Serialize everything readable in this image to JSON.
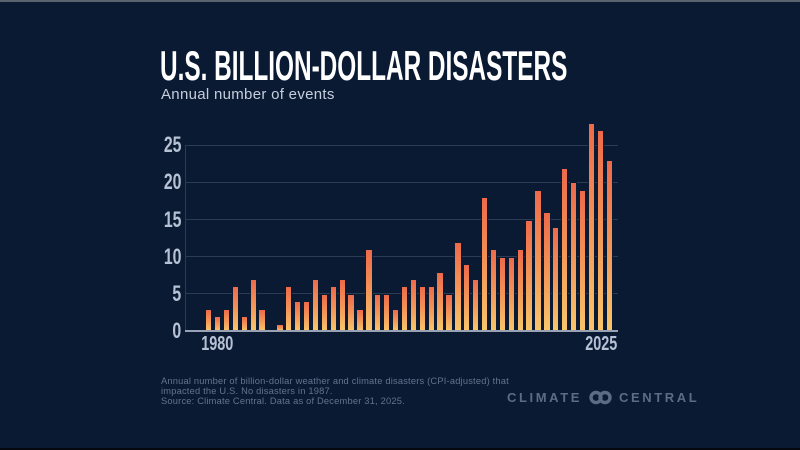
{
  "header": {
    "title": "U.S. BILLION-DOLLAR DISASTERS",
    "subtitle": "Annual number of events"
  },
  "chart_data": {
    "type": "bar",
    "title": "U.S. BILLION-DOLLAR DISASTERS",
    "subtitle": "Annual number of events",
    "x": [
      1980,
      1981,
      1982,
      1983,
      1984,
      1985,
      1986,
      1987,
      1988,
      1989,
      1990,
      1991,
      1992,
      1993,
      1994,
      1995,
      1996,
      1997,
      1998,
      1999,
      2000,
      2001,
      2002,
      2003,
      2004,
      2005,
      2006,
      2007,
      2008,
      2009,
      2010,
      2011,
      2012,
      2013,
      2014,
      2015,
      2016,
      2017,
      2018,
      2019,
      2020,
      2021,
      2022,
      2023,
      2024,
      2025
    ],
    "values": [
      3,
      2,
      3,
      6,
      2,
      7,
      3,
      0,
      1,
      6,
      4,
      4,
      7,
      5,
      6,
      7,
      5,
      3,
      11,
      5,
      5,
      3,
      6,
      7,
      6,
      6,
      8,
      5,
      12,
      9,
      7,
      18,
      11,
      10,
      10,
      11,
      15,
      19,
      16,
      14,
      22,
      20,
      19,
      28,
      27,
      23
    ],
    "xlabel": "",
    "ylabel": "",
    "y_ticks": [
      0,
      5,
      10,
      15,
      20,
      25
    ],
    "x_tick_labels": [
      "1980",
      "2025"
    ],
    "ylim": [
      0,
      28
    ],
    "grid": "horizontal",
    "legend": "none",
    "annotations": [
      "No disasters in 1987"
    ],
    "bar_gradient_top": "#EE6A4A",
    "bar_gradient_bottom": "#F9C66B"
  },
  "footer": {
    "line1": "Annual number of billion-dollar weather and climate disasters (CPI-adjusted) that",
    "line2": "impacted the U.S. No disasters in 1987.",
    "line3": "Source: Climate Central. Data as of December 31, 2025."
  },
  "brand": {
    "left": "CLIMATE",
    "right": "CENTRAL"
  },
  "colors": {
    "background": "#0B1A33",
    "gridline": "#2B3B54",
    "axis_baseline": "#98A2B2",
    "tick_label": "#B6C2D4",
    "title": "#FFFFFF",
    "subtitle": "#C5CEDC",
    "footer_text": "#64738E",
    "brand_text": "#5D6C85"
  }
}
